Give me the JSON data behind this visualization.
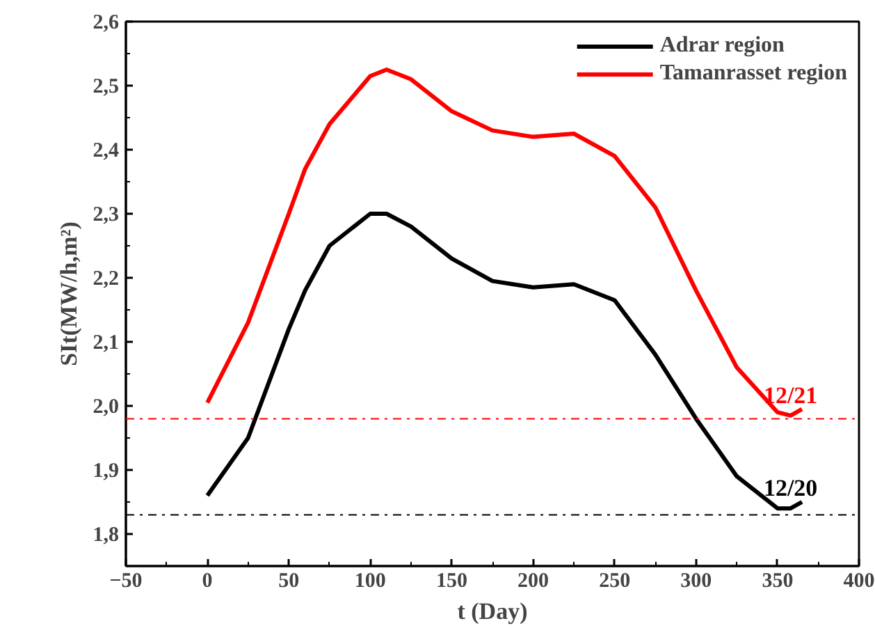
{
  "chart_data": {
    "type": "line",
    "xlabel": "t (Day)",
    "ylabel": "SIt(MW/h,m²)",
    "x": [
      0,
      25,
      50,
      60,
      75,
      100,
      110,
      125,
      150,
      175,
      200,
      225,
      250,
      275,
      300,
      325,
      350,
      358,
      365
    ],
    "series": [
      {
        "name": "Adrar region",
        "color": "#000000",
        "values": [
          1.86,
          1.95,
          2.12,
          2.18,
          2.25,
          2.3,
          2.3,
          2.28,
          2.23,
          2.195,
          2.185,
          2.19,
          2.165,
          2.08,
          1.98,
          1.89,
          1.84,
          1.84,
          1.85
        ]
      },
      {
        "name": "Tamanrasset region",
        "color": "#ff0000",
        "values": [
          2.005,
          2.13,
          2.3,
          2.37,
          2.44,
          2.515,
          2.525,
          2.51,
          2.46,
          2.43,
          2.42,
          2.425,
          2.39,
          2.31,
          2.18,
          2.06,
          1.99,
          1.985,
          1.995
        ]
      }
    ],
    "annotations": [
      {
        "text": "12/20",
        "x": 358,
        "y": 1.84
      },
      {
        "text": "12/21",
        "x": 358,
        "y": 1.985
      }
    ],
    "ref_lines": [
      {
        "axis": "y",
        "value": 1.98,
        "color": "#ff0000",
        "line_style": "dashdot"
      },
      {
        "axis": "y",
        "value": 1.83,
        "color": "#000000",
        "line_style": "dashdot"
      }
    ],
    "xlim": [
      -50,
      400
    ],
    "xticks": [
      -50,
      0,
      50,
      100,
      150,
      200,
      250,
      300,
      350,
      400
    ],
    "ylim": [
      1.75,
      2.6
    ],
    "yticks": [
      {
        "value": 1.8,
        "label": "1,8"
      },
      {
        "value": 1.9,
        "label": "1,9"
      },
      {
        "value": 2.0,
        "label": "2,0"
      },
      {
        "value": 2.1,
        "label": "2,1"
      },
      {
        "value": 2.2,
        "label": "2,2"
      },
      {
        "value": 2.3,
        "label": "2,3"
      },
      {
        "value": 2.4,
        "label": "2,4"
      },
      {
        "value": 2.5,
        "label": "2,5"
      },
      {
        "value": 2.6,
        "label": "2,6"
      }
    ],
    "grid": false,
    "legend": "top right",
    "marker": "none",
    "line_style": "solid"
  }
}
